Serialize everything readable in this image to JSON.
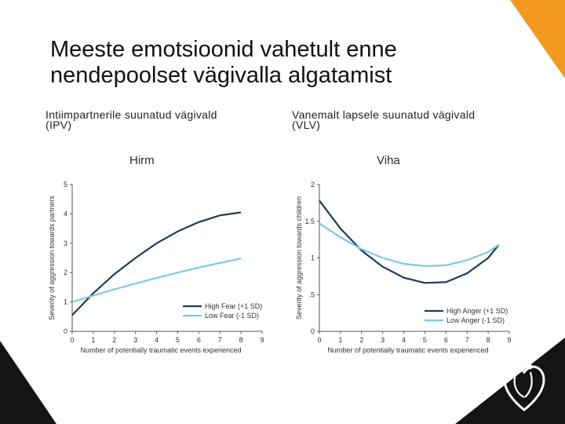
{
  "slide": {
    "title_line1": "Meeste emotsioonid vahetult enne",
    "title_line2": "nendepoolset vägivalla algatamist",
    "left_sub_line1": "Intiimpartnerile suunatud vägivald",
    "left_sub_line2": "(IPV)",
    "right_sub_line1": "Vanemalt lapsele suunatud vägivald",
    "right_sub_line2": "(VLV)",
    "colors": {
      "accent_orange": "#f39a1e",
      "dark": "#141414",
      "high_series": "#1f3a5c",
      "low_series": "#7ec8e3"
    },
    "logo_icon": "heart-people-logo-icon"
  },
  "chart_data": [
    {
      "type": "line",
      "title": "Hirm",
      "xlabel": "Number of potentially traumatic events experienced",
      "ylabel": "Severity of aggression towards partners",
      "x_ticks": [
        "0",
        "1",
        "2",
        "3",
        "4",
        "5",
        "6",
        "7",
        "8",
        "9"
      ],
      "y_ticks": [
        "0",
        "1",
        "2",
        "3",
        "4",
        "5"
      ],
      "xlim": [
        0,
        9
      ],
      "ylim": [
        0,
        5
      ],
      "grid": false,
      "legend_position": "bottom-right",
      "series": [
        {
          "name": "High Fear (+1 SD)",
          "color": "#1f3a5c",
          "x": [
            0,
            1,
            2,
            3,
            4,
            5,
            6,
            7,
            8
          ],
          "y": [
            0.55,
            1.3,
            1.95,
            2.5,
            3.0,
            3.4,
            3.72,
            3.95,
            4.05
          ]
        },
        {
          "name": "Low Fear (-1 SD)",
          "color": "#7ec8e3",
          "x": [
            0,
            1,
            2,
            3,
            4,
            5,
            6,
            7,
            8
          ],
          "y": [
            1.0,
            1.22,
            1.43,
            1.63,
            1.82,
            2.0,
            2.17,
            2.33,
            2.48
          ]
        }
      ]
    },
    {
      "type": "line",
      "title": "Viha",
      "xlabel": "Number of potentially traumatic events experienced",
      "ylabel": "Severity of aggression towards children",
      "x_ticks": [
        "0",
        "1",
        "2",
        "3",
        "4",
        "5",
        "6",
        "7",
        "8",
        "9"
      ],
      "y_ticks": [
        "0",
        ".5",
        "1",
        "1.5",
        "2"
      ],
      "xlim": [
        0,
        9
      ],
      "ylim": [
        0,
        2
      ],
      "grid": false,
      "legend_position": "bottom-right",
      "series": [
        {
          "name": "High Anger (+1 SD)",
          "color": "#1f3a5c",
          "x": [
            0,
            1,
            2,
            3,
            4,
            5,
            6,
            7,
            8,
            8.5
          ],
          "y": [
            1.78,
            1.4,
            1.1,
            0.88,
            0.73,
            0.66,
            0.67,
            0.79,
            1.0,
            1.18
          ]
        },
        {
          "name": "Low Anger (-1 SD)",
          "color": "#7ec8e3",
          "x": [
            0,
            1,
            2,
            3,
            4,
            5,
            6,
            7,
            8,
            8.5
          ],
          "y": [
            1.47,
            1.28,
            1.12,
            1.0,
            0.92,
            0.89,
            0.9,
            0.97,
            1.08,
            1.18
          ]
        }
      ]
    }
  ]
}
